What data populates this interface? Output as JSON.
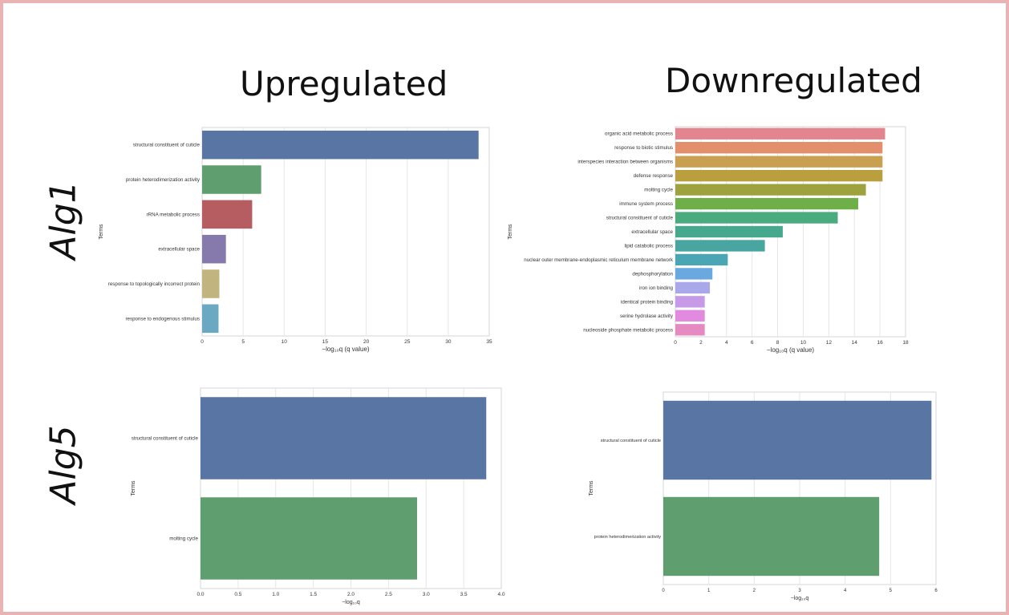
{
  "figure": {
    "col_titles": [
      "Upregulated",
      "Downregulated"
    ],
    "row_labels": [
      "Alg1",
      "Alg5"
    ]
  },
  "chart_data": [
    {
      "id": "alg1-up",
      "type": "bar",
      "orientation": "horizontal",
      "ylabel": "Terms",
      "xlabel": "−log₁₀q   (q value)",
      "xlim": [
        0,
        35
      ],
      "xticks": [
        "0",
        "5",
        "10",
        "15",
        "20",
        "25",
        "30",
        "35"
      ],
      "grid": true,
      "categories": [
        "structural constituent of cuticle",
        "protein heterodimerization activity",
        "rRNA metabolic process",
        "extracellular space",
        "response to topologically incorrect protein",
        "response to endogenous stimulus"
      ],
      "values": [
        33.7,
        7.2,
        6.1,
        2.9,
        2.1,
        2.0
      ],
      "colors": [
        "#5975a4",
        "#5f9e6e",
        "#b55d60",
        "#857aab",
        "#c2b47e",
        "#6ba8c2"
      ]
    },
    {
      "id": "alg1-down",
      "type": "bar",
      "orientation": "horizontal",
      "ylabel": "Terms",
      "xlabel": "−log₁₀q   (q value)",
      "xlim": [
        0,
        18
      ],
      "xticks": [
        "0",
        "2",
        "4",
        "6",
        "8",
        "10",
        "12",
        "14",
        "16",
        "18"
      ],
      "grid": true,
      "categories": [
        "organic acid metabolic process",
        "response to biotic stimulus",
        "interspecies interaction between organisms",
        "defense response",
        "molting cycle",
        "immune system process",
        "structural constituent of cuticle",
        "extracellular space",
        "lipid catabolic process",
        "nuclear outer membrane-endoplasmic reticulum membrane network",
        "dephosphorylation",
        "iron ion binding",
        "identical protein binding",
        "serine hydrolase activity",
        "nucleoside phosphate metabolic process"
      ],
      "values": [
        16.4,
        16.2,
        16.2,
        16.2,
        14.9,
        14.3,
        12.7,
        8.4,
        7.0,
        4.1,
        2.9,
        2.7,
        2.3,
        2.3,
        2.3
      ],
      "colors": [
        "#e1858e",
        "#e38f6c",
        "#c99f50",
        "#b99f3e",
        "#9da23e",
        "#6eaf47",
        "#4aab7e",
        "#46a88d",
        "#48a59f",
        "#4aa6b5",
        "#6aa8e0",
        "#a8a8ea",
        "#c79ae8",
        "#e28ae0",
        "#e68bc2"
      ]
    },
    {
      "id": "alg5-up",
      "type": "bar",
      "orientation": "horizontal",
      "ylabel": "Terms",
      "xlabel": "−log₁₀q",
      "xlim": [
        0,
        4.0
      ],
      "xticks": [
        "0.0",
        "0.5",
        "1.0",
        "1.5",
        "2.0",
        "2.5",
        "3.0",
        "3.5",
        "4.0"
      ],
      "grid": true,
      "categories": [
        "structural constituent of cuticle",
        "molting cycle"
      ],
      "values": [
        3.8,
        2.88
      ],
      "colors": [
        "#5975a4",
        "#5f9e6e"
      ]
    },
    {
      "id": "alg5-down",
      "type": "bar",
      "orientation": "horizontal",
      "ylabel": "Terms",
      "xlabel": "−log₁₀q",
      "xlim": [
        0,
        6
      ],
      "xticks": [
        "0",
        "1",
        "2",
        "3",
        "4",
        "5",
        "6"
      ],
      "grid": true,
      "categories": [
        "structural constituent of cuticle",
        "protein heterodimerization activity"
      ],
      "values": [
        5.9,
        4.75
      ],
      "colors": [
        "#5975a4",
        "#5f9e6e"
      ]
    }
  ]
}
